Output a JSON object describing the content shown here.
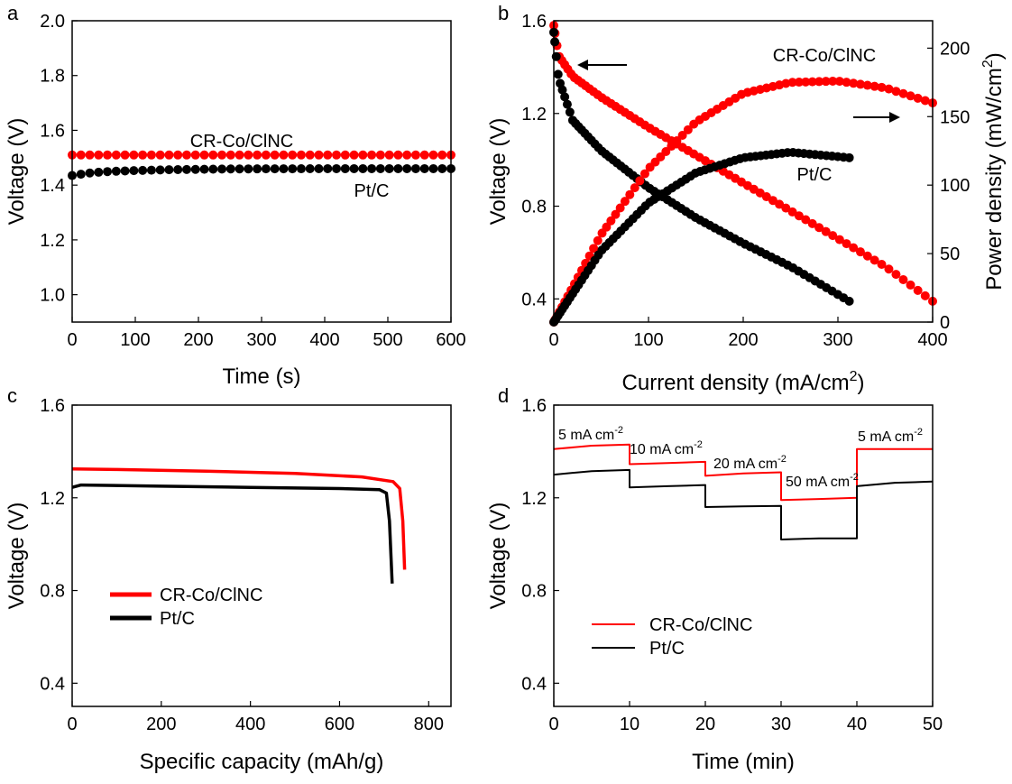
{
  "colors": {
    "cr": "#ff0000",
    "pt": "#000000"
  },
  "chart_data": [
    {
      "id": "a",
      "panel_label": "a",
      "type": "scatter",
      "xlabel": "Time (s)",
      "ylabel": "Voltage (V)",
      "xlim": [
        0,
        600
      ],
      "ylim": [
        0.9,
        2.0
      ],
      "xticks": [
        "0",
        "100",
        "200",
        "300",
        "400",
        "500",
        "600"
      ],
      "yticks": [
        "1.0",
        "1.2",
        "1.4",
        "1.6",
        "1.8",
        "2.0"
      ],
      "annotations": [
        "CR-Co/ClNC",
        "Pt/C"
      ],
      "series": [
        {
          "key": "cr",
          "points": [
            [
              0,
              1.51
            ],
            [
              600,
              1.51
            ]
          ]
        },
        {
          "key": "pt",
          "points": [
            [
              0,
              1.435
            ],
            [
              30,
              1.445
            ],
            [
              60,
              1.45
            ],
            [
              100,
              1.453
            ],
            [
              150,
              1.456
            ],
            [
              250,
              1.459
            ],
            [
              400,
              1.46
            ],
            [
              600,
              1.46
            ]
          ]
        }
      ]
    },
    {
      "id": "b",
      "panel_label": "b",
      "type": "scatter",
      "xlabel": "Current density (mA/cm",
      "xlabel_sup": "2",
      "xlabel_end": ")",
      "ylabel": "Voltage (V)",
      "y2label": "Power density (mW/cm",
      "y2label_sup": "2",
      "y2label_end": ")",
      "xlim": [
        0,
        400
      ],
      "ylim": [
        0.3,
        1.6
      ],
      "y2lim": [
        0,
        220
      ],
      "xticks": [
        "0",
        "100",
        "200",
        "300",
        "400"
      ],
      "yticks": [
        "0.4",
        "0.8",
        "1.2",
        "1.6"
      ],
      "y2ticks": [
        "0",
        "50",
        "100",
        "150",
        "200"
      ],
      "annotations": [
        "CR-Co/ClNC",
        "Pt/C"
      ],
      "series": [
        {
          "key": "cr",
          "kind": "voltage",
          "points": [
            [
              0,
              1.58
            ],
            [
              5,
              1.45
            ],
            [
              20,
              1.36
            ],
            [
              50,
              1.27
            ],
            [
              100,
              1.14
            ],
            [
              150,
              1.02
            ],
            [
              200,
              0.9
            ],
            [
              250,
              0.78
            ],
            [
              300,
              0.66
            ],
            [
              350,
              0.54
            ],
            [
              400,
              0.39
            ]
          ]
        },
        {
          "key": "pt",
          "kind": "voltage",
          "points": [
            [
              0,
              1.55
            ],
            [
              5,
              1.35
            ],
            [
              20,
              1.17
            ],
            [
              50,
              1.04
            ],
            [
              100,
              0.88
            ],
            [
              150,
              0.75
            ],
            [
              200,
              0.64
            ],
            [
              250,
              0.54
            ],
            [
              312,
              0.39
            ]
          ]
        },
        {
          "key": "cr",
          "kind": "power",
          "points": [
            [
              0,
              0
            ],
            [
              50,
              64
            ],
            [
              100,
              112
            ],
            [
              150,
              146
            ],
            [
              200,
              167
            ],
            [
              250,
              175
            ],
            [
              300,
              176
            ],
            [
              350,
              171
            ],
            [
              400,
              160
            ]
          ]
        },
        {
          "key": "pt",
          "kind": "power",
          "points": [
            [
              0,
              0
            ],
            [
              50,
              52
            ],
            [
              100,
              87
            ],
            [
              150,
              109
            ],
            [
              200,
              120
            ],
            [
              250,
              124
            ],
            [
              312,
              120
            ]
          ]
        }
      ]
    },
    {
      "id": "c",
      "panel_label": "c",
      "type": "line",
      "xlabel": "Specific capacity (mAh/g)",
      "ylabel": "Voltage (V)",
      "xlim": [
        0,
        850
      ],
      "ylim": [
        0.3,
        1.6
      ],
      "xticks": [
        "0",
        "200",
        "400",
        "600",
        "800"
      ],
      "yticks": [
        "0.4",
        "0.8",
        "1.2",
        "1.6"
      ],
      "legend": [
        "CR-Co/ClNC",
        "Pt/C"
      ],
      "series": [
        {
          "key": "cr",
          "points": [
            [
              0,
              1.325
            ],
            [
              100,
              1.322
            ],
            [
              300,
              1.315
            ],
            [
              500,
              1.305
            ],
            [
              650,
              1.29
            ],
            [
              720,
              1.27
            ],
            [
              735,
              1.24
            ],
            [
              742,
              1.1
            ],
            [
              746,
              0.89
            ]
          ]
        },
        {
          "key": "pt",
          "points": [
            [
              0,
              1.245
            ],
            [
              20,
              1.255
            ],
            [
              200,
              1.25
            ],
            [
              400,
              1.245
            ],
            [
              600,
              1.24
            ],
            [
              690,
              1.235
            ],
            [
              705,
              1.22
            ],
            [
              712,
              1.1
            ],
            [
              718,
              0.83
            ]
          ]
        }
      ]
    },
    {
      "id": "d",
      "panel_label": "d",
      "type": "line",
      "xlabel": "Time (min)",
      "ylabel": "Voltage (V)",
      "xlim": [
        0,
        50
      ],
      "ylim": [
        0.3,
        1.6
      ],
      "xticks": [
        "0",
        "10",
        "20",
        "30",
        "40",
        "50"
      ],
      "yticks": [
        "0.4",
        "0.8",
        "1.2",
        "1.6"
      ],
      "legend": [
        "CR-Co/ClNC",
        "Pt/C"
      ],
      "step_labels": [
        {
          "text": "5 mA cm",
          "sup": "-2"
        },
        {
          "text": "10 mA cm",
          "sup": "-2"
        },
        {
          "text": "20 mA cm",
          "sup": "-2"
        },
        {
          "text": "50 mA cm",
          "sup": "-2"
        },
        {
          "text": "5 mA cm",
          "sup": "-2"
        }
      ],
      "series": [
        {
          "key": "cr",
          "points": [
            [
              0,
              1.41
            ],
            [
              5,
              1.425
            ],
            [
              10,
              1.43
            ],
            [
              10,
              1.345
            ],
            [
              15,
              1.35
            ],
            [
              20,
              1.355
            ],
            [
              20,
              1.295
            ],
            [
              25,
              1.305
            ],
            [
              30,
              1.31
            ],
            [
              30,
              1.19
            ],
            [
              35,
              1.195
            ],
            [
              40,
              1.2
            ],
            [
              40,
              1.41
            ],
            [
              45,
              1.41
            ],
            [
              50,
              1.41
            ]
          ]
        },
        {
          "key": "pt",
          "points": [
            [
              0,
              1.3
            ],
            [
              5,
              1.315
            ],
            [
              10,
              1.32
            ],
            [
              10,
              1.245
            ],
            [
              15,
              1.25
            ],
            [
              20,
              1.255
            ],
            [
              20,
              1.16
            ],
            [
              25,
              1.163
            ],
            [
              30,
              1.165
            ],
            [
              30,
              1.02
            ],
            [
              35,
              1.025
            ],
            [
              40,
              1.025
            ],
            [
              40,
              1.25
            ],
            [
              45,
              1.265
            ],
            [
              50,
              1.27
            ]
          ]
        }
      ]
    }
  ]
}
